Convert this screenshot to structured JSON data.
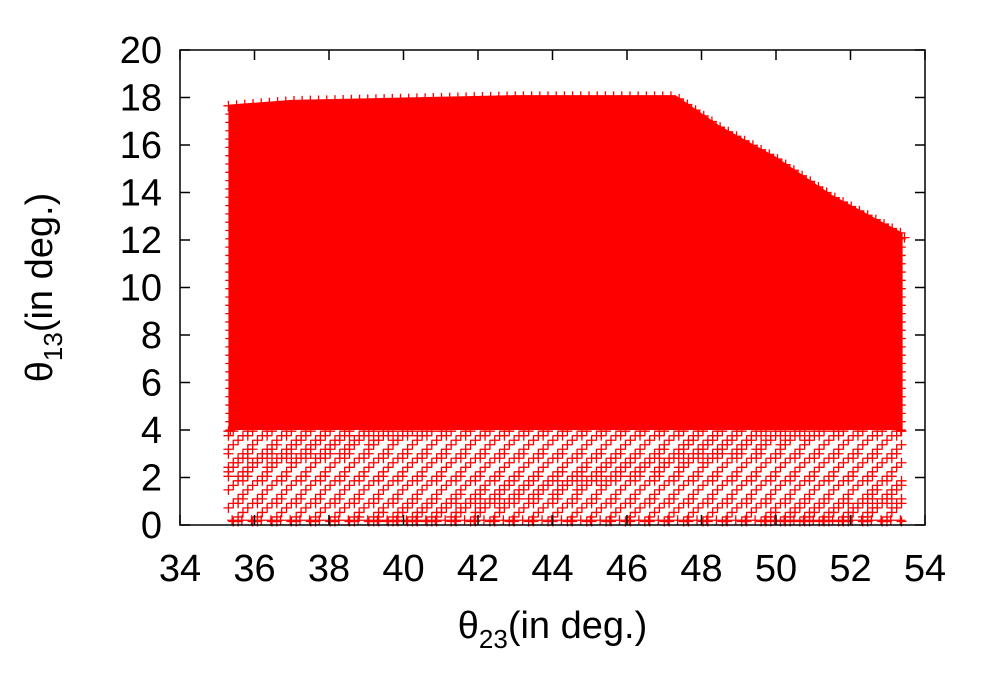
{
  "chart_data": {
    "type": "scatter",
    "title": "",
    "xlabel": {
      "symbol": "θ",
      "subscript": "23",
      "suffix": "(in deg.)"
    },
    "ylabel": {
      "symbol": "θ",
      "subscript": "13",
      "suffix": "(in deg.)"
    },
    "xlim": [
      34,
      54
    ],
    "ylim": [
      0,
      20
    ],
    "xticks": [
      "34",
      "36",
      "38",
      "40",
      "42",
      "44",
      "46",
      "48",
      "50",
      "52",
      "54"
    ],
    "yticks": [
      "0",
      "2",
      "4",
      "6",
      "8",
      "10",
      "12",
      "14",
      "16",
      "18",
      "20"
    ],
    "grid": false,
    "legend": "none",
    "marker": "+",
    "color": "#ff0000",
    "region": {
      "x_min": 35.3,
      "x_max": 53.4,
      "upper_boundary": [
        {
          "x": 35.3,
          "y": 17.7
        },
        {
          "x": 37.0,
          "y": 17.9
        },
        {
          "x": 40.0,
          "y": 18.0
        },
        {
          "x": 43.0,
          "y": 18.1
        },
        {
          "x": 46.0,
          "y": 18.1
        },
        {
          "x": 47.3,
          "y": 18.1
        },
        {
          "x": 48.5,
          "y": 16.8
        },
        {
          "x": 50.0,
          "y": 15.5
        },
        {
          "x": 51.5,
          "y": 13.9
        },
        {
          "x": 53.4,
          "y": 12.3
        }
      ],
      "dense_y_min": 4.0,
      "sparse_band": [
        0,
        4
      ]
    }
  }
}
